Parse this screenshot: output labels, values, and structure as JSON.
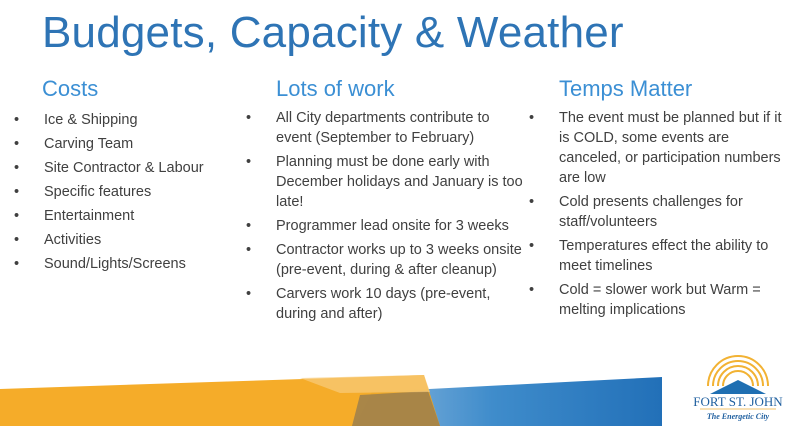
{
  "title": "Budgets, Capacity & Weather",
  "columns": [
    {
      "heading": "Costs",
      "items": [
        "Ice & Shipping",
        "Carving Team",
        "Site Contractor & Labour",
        "Specific features",
        "Entertainment",
        "Activities",
        "Sound/Lights/Screens"
      ]
    },
    {
      "heading": "Lots of work",
      "items": [
        "All City departments contribute to event (September to February)",
        "Planning must be done early with December holidays and January is too late!",
        "Programmer lead onsite for 3 weeks",
        "Contractor works up to 3 weeks onsite (pre-event, during & after cleanup)",
        "Carvers work 10 days (pre-event, during and after)"
      ]
    },
    {
      "heading": "Temps Matter",
      "items": [
        "The event must be planned but if it is COLD, some events are canceled, or participation numbers are low",
        "Cold presents challenges for staff/volunteers",
        "Temperatures effect the ability to meet timelines",
        "Cold = slower work but Warm = melting implications"
      ]
    }
  ],
  "logo": {
    "name": "FORT ST. JOHN",
    "tagline": "The Energetic City"
  },
  "colors": {
    "title": "#2e74b5",
    "heading": "#3b8fd4",
    "orange": "#f4a81d",
    "blue": "#2674ba"
  }
}
